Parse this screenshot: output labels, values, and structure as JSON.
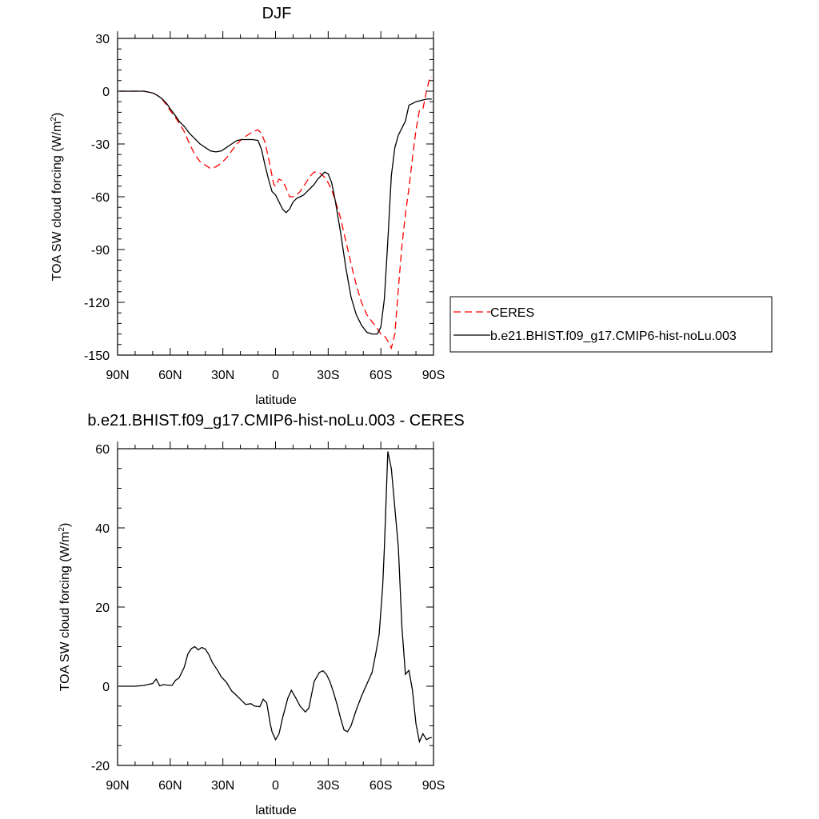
{
  "chart_data": [
    {
      "type": "line",
      "title": "DJF",
      "xlabel": "latitude",
      "ylabel": "TOA SW cloud forcing (W/m",
      "ylabel_sup": "2",
      "ylabel_close": ")",
      "xlim": [
        90,
        -90
      ],
      "ylim": [
        -150,
        30
      ],
      "xticks": [
        90,
        60,
        30,
        0,
        -30,
        -60,
        -90
      ],
      "xtick_labels": [
        "90N",
        "60N",
        "30N",
        "0",
        "30S",
        "60S",
        "90S"
      ],
      "yticks": [
        30,
        0,
        -30,
        -60,
        -90,
        -120,
        -150
      ],
      "ytick_labels": [
        "30",
        "0",
        "-30",
        "-60",
        "-90",
        "-120",
        "-150"
      ],
      "legend": [
        "CERES",
        "b.e21.BHIST.f09_g17.CMIP6-hist-noLu.003"
      ],
      "series": [
        {
          "name": "CERES",
          "color": "#ff0000",
          "style": "dashed",
          "x": [
            89,
            85,
            80,
            75,
            70,
            68,
            65,
            62,
            60,
            57,
            55,
            52,
            49,
            46,
            43,
            40,
            37,
            34,
            31,
            28,
            25,
            22,
            19,
            16,
            13,
            10,
            8,
            6,
            4,
            2,
            1,
            0,
            -1,
            -2,
            -4,
            -6,
            -8,
            -10,
            -12,
            -14,
            -16,
            -18,
            -20,
            -22,
            -24,
            -26,
            -28,
            -30,
            -32,
            -34,
            -37,
            -40,
            -43,
            -46,
            -49,
            -52,
            -55,
            -58,
            -60,
            -62,
            -64,
            -66,
            -68,
            -70,
            -72,
            -74,
            -76,
            -78,
            -80,
            -82,
            -84,
            -86,
            -88,
            -89
          ],
          "y": [
            0,
            0,
            0,
            0,
            -1,
            -2,
            -4,
            -8,
            -11,
            -15,
            -18,
            -23,
            -30,
            -36,
            -40,
            -42,
            -44,
            -43,
            -41,
            -38,
            -34,
            -30,
            -27,
            -25,
            -23,
            -22,
            -24,
            -29,
            -38,
            -48,
            -53,
            -54,
            -52,
            -50,
            -51,
            -55,
            -60,
            -60,
            -59,
            -57,
            -54,
            -51,
            -48,
            -46,
            -46,
            -47,
            -49,
            -52,
            -56,
            -62,
            -72,
            -85,
            -98,
            -110,
            -120,
            -127,
            -131,
            -135,
            -138,
            -139,
            -142,
            -146,
            -138,
            -112,
            -88,
            -70,
            -55,
            -38,
            -22,
            -11,
            -10,
            0,
            8,
            8
          ]
        },
        {
          "name": "b.e21.BHIST.f09_g17.CMIP6-hist-noLu.003",
          "color": "#000000",
          "style": "solid",
          "x": [
            89,
            85,
            80,
            75,
            70,
            68,
            65,
            62,
            60,
            57,
            55,
            52,
            49,
            46,
            43,
            40,
            37,
            34,
            31,
            28,
            25,
            22,
            19,
            16,
            13,
            10,
            8,
            6,
            4,
            2,
            0,
            -2,
            -4,
            -6,
            -8,
            -10,
            -12,
            -14,
            -16,
            -18,
            -20,
            -22,
            -24,
            -26,
            -28,
            -30,
            -32,
            -34,
            -37,
            -40,
            -43,
            -46,
            -49,
            -52,
            -55,
            -58,
            -60,
            -62,
            -64,
            -66,
            -68,
            -70,
            -72,
            -74,
            -76,
            -78,
            -80,
            -82,
            -84,
            -86,
            -88,
            -89
          ],
          "y": [
            0,
            0,
            0,
            0,
            -1,
            -2,
            -4,
            -7,
            -10,
            -14,
            -17,
            -20,
            -24,
            -27,
            -30,
            -32,
            -34,
            -34.5,
            -34,
            -32,
            -30,
            -28,
            -27.5,
            -27.5,
            -27.5,
            -28,
            -33,
            -42,
            -50,
            -57,
            -59,
            -63,
            -67,
            -69,
            -67,
            -63,
            -61,
            -60,
            -59,
            -57,
            -55,
            -53,
            -50,
            -48,
            -46,
            -47,
            -52,
            -62,
            -80,
            -100,
            -117,
            -127,
            -133,
            -137,
            -138,
            -138,
            -134,
            -118,
            -85,
            -48,
            -32,
            -25,
            -21,
            -17,
            -8,
            -7,
            -6,
            -5.5,
            -5,
            -4.5,
            -4.5,
            -4.5
          ]
        }
      ]
    },
    {
      "type": "line",
      "title": "b.e21.BHIST.f09_g17.CMIP6-hist-noLu.003 - CERES",
      "xlabel": "latitude",
      "ylabel": "TOA SW cloud forcing (W/m",
      "ylabel_sup": "2",
      "ylabel_close": ")",
      "xlim": [
        90,
        -90
      ],
      "ylim": [
        -20,
        60
      ],
      "xticks": [
        90,
        60,
        30,
        0,
        -30,
        -60,
        -90
      ],
      "xtick_labels": [
        "90N",
        "60N",
        "30N",
        "0",
        "30S",
        "60S",
        "90S"
      ],
      "yticks": [
        60,
        40,
        20,
        0,
        -20
      ],
      "ytick_labels": [
        "60",
        "40",
        "20",
        "0",
        "-20"
      ],
      "series": [
        {
          "name": "b.e21.BHIST.f09_g17.CMIP6-hist-noLu.003 - CERES",
          "color": "#000000",
          "style": "solid",
          "x": [
            89,
            85,
            80,
            75,
            72,
            70,
            68,
            66,
            64,
            62,
            59,
            57,
            55,
            52,
            50,
            48,
            46,
            44,
            42,
            40,
            38,
            36,
            33,
            31,
            28,
            25,
            23,
            20,
            17,
            14,
            12,
            9,
            7,
            5,
            3,
            2,
            0,
            -2,
            -4,
            -7,
            -9,
            -11,
            -14,
            -17,
            -19,
            -22,
            -25,
            -27,
            -29,
            -31,
            -33,
            -35,
            -37,
            -39,
            -41,
            -43,
            -46,
            -49,
            -52,
            -55,
            -57,
            -59,
            -61,
            -62,
            -64,
            -66,
            -68,
            -70,
            -72,
            -74,
            -76,
            -78,
            -80,
            -82,
            -84,
            -86,
            -88,
            -89
          ],
          "y": [
            0,
            0,
            0,
            0.2,
            0.5,
            0.7,
            1.8,
            0.1,
            0.4,
            0.3,
            0.2,
            1.5,
            2.1,
            4.8,
            8.1,
            9.5,
            10.0,
            9.2,
            9.8,
            9.4,
            8.0,
            6.0,
            4.0,
            2.4,
            1.0,
            -1.2,
            -2.0,
            -3.3,
            -4.6,
            -4.4,
            -5.0,
            -5.2,
            -3.3,
            -4.2,
            -9.5,
            -11.5,
            -13.5,
            -12.0,
            -8.0,
            -3.0,
            -1.0,
            -2.5,
            -5.0,
            -6.5,
            -5.5,
            1.2,
            3.5,
            3.9,
            3.0,
            1.2,
            -1.5,
            -4.5,
            -8.0,
            -11.0,
            -11.5,
            -10.0,
            -6.0,
            -2.5,
            0.5,
            3.5,
            8.0,
            13.0,
            25.0,
            35.0,
            59.3,
            55.0,
            45.0,
            35.0,
            15.0,
            3.0,
            4.0,
            -1.0,
            -9.5,
            -14.0,
            -12.0,
            -13.5,
            -13.0,
            -13.0
          ]
        }
      ]
    }
  ]
}
